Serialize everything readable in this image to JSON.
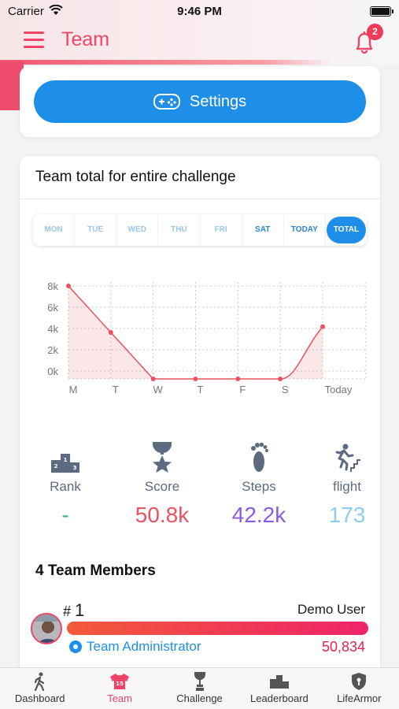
{
  "status_bar": {
    "carrier": "Carrier",
    "time": "9:46 PM"
  },
  "header": {
    "title": "Team",
    "notification_count": "2",
    "accent_color": "#ef4466"
  },
  "settings": {
    "label": "Settings",
    "color": "#1e8fe8"
  },
  "chart_section": {
    "title": "Team total for entire challenge",
    "day_tabs": [
      "MON",
      "TUE",
      "WED",
      "THU",
      "FRI",
      "SAT",
      "TODAY",
      "TOTAL"
    ],
    "active_tab": "TOTAL"
  },
  "chart_data": {
    "type": "area",
    "categories": [
      "M",
      "T",
      "W",
      "T",
      "F",
      "S",
      "Today"
    ],
    "values": [
      8000,
      4000,
      0,
      0,
      0,
      0,
      4500
    ],
    "ytick_labels": [
      "8k",
      "6k",
      "4k",
      "2k",
      "0k"
    ],
    "ylim": [
      0,
      8000
    ],
    "grid": true,
    "color": "#e8535f"
  },
  "stats": [
    {
      "label": "Rank",
      "value": "-",
      "icon": "podium-icon",
      "color": "#3ab36a"
    },
    {
      "label": "Score",
      "value": "50.8k",
      "icon": "trophy-star-icon",
      "color": "#e8535f"
    },
    {
      "label": "Steps",
      "value": "42.2k",
      "icon": "footprint-icon",
      "color": "#8a5be0"
    },
    {
      "label": "flight",
      "value": "173",
      "icon": "stairs-runner-icon",
      "color": "#8ccdee"
    }
  ],
  "members": {
    "title": "4 Team Members",
    "list": [
      {
        "rank_prefix": "#",
        "rank": "1",
        "name": "Demo User",
        "role": "Team Administrator",
        "score": "50,834"
      }
    ]
  },
  "tabbar": [
    {
      "label": "Dashboard",
      "icon": "walking-icon"
    },
    {
      "label": "Team",
      "icon": "team-shirt-icon",
      "active": true
    },
    {
      "label": "Challenge",
      "icon": "trophy-icon"
    },
    {
      "label": "Leaderboard",
      "icon": "podium-icon"
    },
    {
      "label": "LifeArmor",
      "icon": "shield-icon"
    }
  ]
}
